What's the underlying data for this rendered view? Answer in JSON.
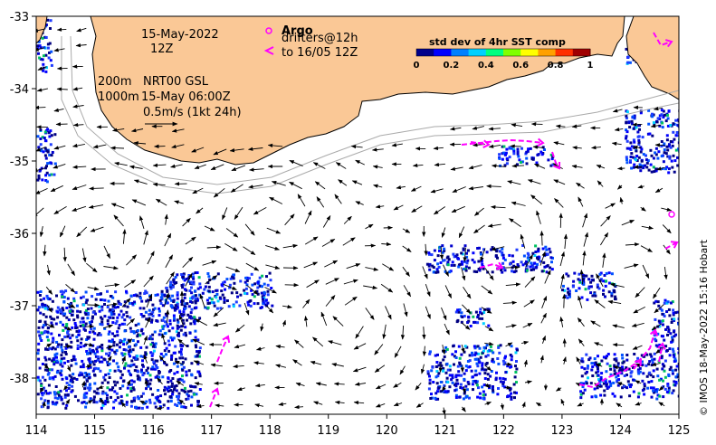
{
  "map": {
    "lon_range": [
      114,
      125
    ],
    "lat_range": [
      -38.5,
      -33
    ],
    "x_ticks": [
      "114",
      "115",
      "116",
      "117",
      "118",
      "119",
      "120",
      "121",
      "122",
      "123",
      "124",
      "125"
    ],
    "x_tick_values": [
      114,
      115,
      116,
      117,
      118,
      119,
      120,
      121,
      122,
      123,
      124,
      125
    ],
    "y_ticks": [
      "-33",
      "-34",
      "-35",
      "-36",
      "-37",
      "-38"
    ],
    "y_tick_values": [
      -33,
      -34,
      -35,
      -36,
      -37,
      -38
    ],
    "colors": {
      "land": "#fac896",
      "ocean": "#ffffff",
      "drifter": "#ff00ff",
      "isobath": "#aaaaaa"
    }
  },
  "annotations": {
    "date": "15-May-2022",
    "time": "12Z",
    "depth1": "200m",
    "product": "NRT00 GSL",
    "depth2": "1000m",
    "product_time": "15-May 06:00Z",
    "scale_label": "0.5m/s (1kt 24h)"
  },
  "legend": {
    "argo_label": "Argo",
    "drifters_label": "drifters@12h",
    "drifters_to": "to 16/05 12Z"
  },
  "colorbar": {
    "title": "std dev of 4hr SST comp",
    "ticks": [
      "0",
      "0.2",
      "0.4",
      "0.6",
      "0.8",
      "1"
    ],
    "colors": [
      "#00008b",
      "#0000ff",
      "#0080ff",
      "#00d0ff",
      "#00ff80",
      "#80ff00",
      "#ffff00",
      "#ffa000",
      "#ff3000",
      "#a00000"
    ]
  },
  "credit": "© IMOS 18-May-2022 15:16 Hobart"
}
